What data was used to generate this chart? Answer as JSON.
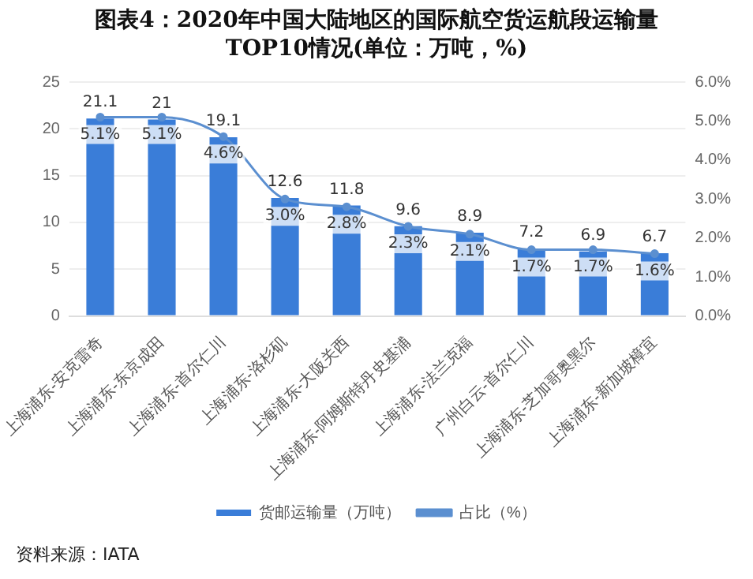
{
  "chart_data": {
    "type": "bar",
    "title": "图表4：2020年中国大陆地区的国际航空货运航段运输量TOP10情况(单位：万吨，%)",
    "categories": [
      "上海浦东-安克雷奇",
      "上海浦东-东京成田",
      "上海浦东-首尔仁川",
      "上海浦东-洛杉矶",
      "上海浦东-大阪关西",
      "上海浦东-阿姆斯特丹史基浦",
      "上海浦东-法兰克福",
      "广州白云-首尔仁川",
      "上海浦东-芝加哥奥黑尔",
      "上海浦东-新加坡樟宜"
    ],
    "series": [
      {
        "name": "货邮运输量（万吨）",
        "color": "#3a7dd8",
        "values": [
          21.1,
          21,
          19.1,
          12.6,
          11.8,
          9.6,
          8.9,
          7.2,
          6.9,
          6.7
        ],
        "value_labels": [
          "21.1",
          "21",
          "19.1",
          "12.6",
          "11.8",
          "9.6",
          "8.9",
          "7.2",
          "6.9",
          "6.7"
        ]
      },
      {
        "name": "占比（%）",
        "type": "line",
        "axis": "y2",
        "color": "#5b8fd0",
        "values": [
          5.1,
          5.1,
          4.6,
          3.0,
          2.8,
          2.3,
          2.1,
          1.7,
          1.7,
          1.6
        ],
        "value_labels": [
          "5.1%",
          "5.1%",
          "4.6%",
          "3.0%",
          "2.8%",
          "2.3%",
          "2.1%",
          "1.7%",
          "1.7%",
          "1.6%"
        ]
      }
    ],
    "ylim": [
      0,
      25
    ],
    "yticks": [
      0,
      5,
      10,
      15,
      20,
      25
    ],
    "y2lim": [
      0,
      6
    ],
    "y2ticks": [
      {
        "value": 0,
        "label": "0.0%"
      },
      {
        "value": 1,
        "label": "1.0%"
      },
      {
        "value": 2,
        "label": "2.0%"
      },
      {
        "value": 3,
        "label": "3.0%"
      },
      {
        "value": 4,
        "label": "4.0%"
      },
      {
        "value": 5,
        "label": "5.0%"
      },
      {
        "value": 6,
        "label": "6.0%"
      }
    ],
    "grid": "y",
    "legend": "bottom",
    "marker": "circle",
    "line_style": "solid",
    "annotations": [
      "资料来源：IATA"
    ]
  }
}
